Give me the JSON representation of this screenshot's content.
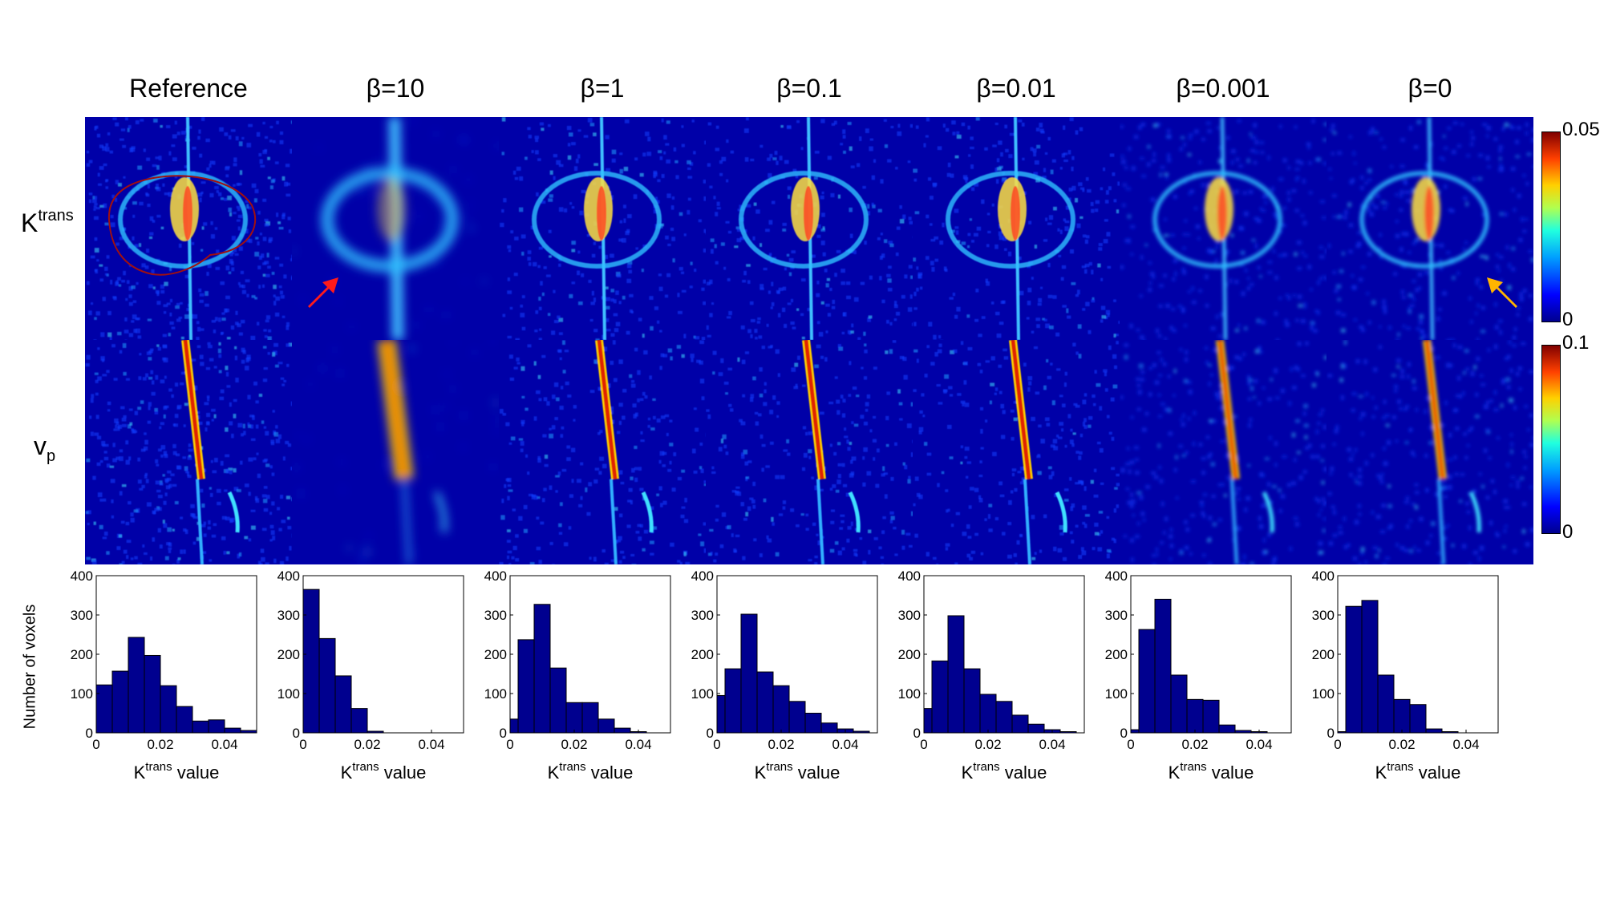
{
  "columns": [
    "Reference",
    "β=10",
    "β=1",
    "β=0.1",
    "β=0.01",
    "β=0.001",
    "β=0"
  ],
  "rows": {
    "ktrans": {
      "main": "K",
      "sup": "trans"
    },
    "vp": {
      "main": "v",
      "sub": "p"
    }
  },
  "colorbars": {
    "ktrans": {
      "max": "0.05",
      "min": "0"
    },
    "vp": {
      "max": "0.1",
      "min": "0"
    }
  },
  "colors": {
    "map_background": "#0000a8",
    "bar_fill": "#00008f",
    "roi_outline": "#a01010",
    "arrow_red": "#ff1a1a",
    "arrow_yellow": "#ffb400"
  },
  "arrows": [
    {
      "column": 1,
      "color_key": "arrow_red"
    },
    {
      "column": 6,
      "color_key": "arrow_yellow"
    }
  ],
  "chart_data": [
    {
      "type": "bar",
      "panel": "Reference",
      "bin_edges": [
        0,
        0.005,
        0.01,
        0.015,
        0.02,
        0.025,
        0.03,
        0.035,
        0.04,
        0.045,
        0.05
      ],
      "values": [
        122,
        157,
        243,
        197,
        120,
        67,
        30,
        33,
        12,
        6
      ],
      "xlim": [
        0,
        0.05
      ],
      "ylim": [
        0,
        400
      ],
      "xticks": [
        "0",
        "0.02",
        "0.04"
      ],
      "yticks": [
        "0",
        "100",
        "200",
        "300",
        "400"
      ],
      "xlabel": {
        "main": "K",
        "sup": "trans",
        "rest": " value"
      },
      "ylabel": "Number of voxels"
    },
    {
      "type": "bar",
      "panel": "β=10",
      "bin_edges": [
        0,
        0.005,
        0.01,
        0.015,
        0.02,
        0.025
      ],
      "values": [
        365,
        240,
        145,
        62,
        4
      ],
      "xlim": [
        0,
        0.05
      ],
      "ylim": [
        0,
        400
      ],
      "xticks": [
        "0",
        "0.02",
        "0.04"
      ],
      "yticks": [
        "0",
        "100",
        "200",
        "300",
        "400"
      ],
      "xlabel": {
        "main": "K",
        "sup": "trans",
        "rest": " value"
      }
    },
    {
      "type": "bar",
      "panel": "β=1",
      "bin_edges": [
        0,
        0.0025,
        0.0075,
        0.0125,
        0.0175,
        0.0225,
        0.0275,
        0.0325,
        0.0375,
        0.0425
      ],
      "values": [
        35,
        237,
        327,
        165,
        77,
        77,
        35,
        12,
        3
      ],
      "xlim": [
        0,
        0.05
      ],
      "ylim": [
        0,
        400
      ],
      "xticks": [
        "0",
        "0.02",
        "0.04"
      ],
      "yticks": [
        "0",
        "100",
        "200",
        "300",
        "400"
      ],
      "xlabel": {
        "main": "K",
        "sup": "trans",
        "rest": " value"
      }
    },
    {
      "type": "bar",
      "panel": "β=0.1",
      "bin_edges": [
        0,
        0.0025,
        0.0075,
        0.0125,
        0.0175,
        0.0225,
        0.0275,
        0.0325,
        0.0375,
        0.0425,
        0.0475
      ],
      "values": [
        95,
        163,
        302,
        155,
        120,
        80,
        50,
        25,
        10,
        4
      ],
      "xlim": [
        0,
        0.05
      ],
      "ylim": [
        0,
        400
      ],
      "xticks": [
        "0",
        "0.02",
        "0.04"
      ],
      "yticks": [
        "0",
        "100",
        "200",
        "300",
        "400"
      ],
      "xlabel": {
        "main": "K",
        "sup": "trans",
        "rest": " value"
      }
    },
    {
      "type": "bar",
      "panel": "β=0.01",
      "bin_edges": [
        0,
        0.0025,
        0.0075,
        0.0125,
        0.0175,
        0.0225,
        0.0275,
        0.0325,
        0.0375,
        0.0425,
        0.0475
      ],
      "values": [
        62,
        183,
        298,
        163,
        98,
        80,
        45,
        22,
        8,
        3
      ],
      "xlim": [
        0,
        0.05
      ],
      "ylim": [
        0,
        400
      ],
      "xticks": [
        "0",
        "0.02",
        "0.04"
      ],
      "yticks": [
        "0",
        "100",
        "200",
        "300",
        "400"
      ],
      "xlabel": {
        "main": "K",
        "sup": "trans",
        "rest": " value"
      }
    },
    {
      "type": "bar",
      "panel": "β=0.001",
      "bin_edges": [
        0,
        0.0025,
        0.0075,
        0.0125,
        0.0175,
        0.0225,
        0.0275,
        0.0325,
        0.0375,
        0.0425
      ],
      "values": [
        8,
        263,
        340,
        147,
        85,
        83,
        20,
        6,
        3
      ],
      "xlim": [
        0,
        0.05
      ],
      "ylim": [
        0,
        400
      ],
      "xticks": [
        "0",
        "0.02",
        "0.04"
      ],
      "yticks": [
        "0",
        "100",
        "200",
        "300",
        "400"
      ],
      "xlabel": {
        "main": "K",
        "sup": "trans",
        "rest": " value"
      }
    },
    {
      "type": "bar",
      "panel": "β=0",
      "bin_edges": [
        0,
        0.0025,
        0.0075,
        0.0125,
        0.0175,
        0.0225,
        0.0275,
        0.0325,
        0.0375
      ],
      "values": [
        3,
        322,
        337,
        147,
        85,
        72,
        10,
        3
      ],
      "xlim": [
        0,
        0.05
      ],
      "ylim": [
        0,
        400
      ],
      "xticks": [
        "0",
        "0.02",
        "0.04"
      ],
      "yticks": [
        "0",
        "100",
        "200",
        "300",
        "400"
      ],
      "xlabel": {
        "main": "K",
        "sup": "trans",
        "rest": " value"
      }
    }
  ]
}
